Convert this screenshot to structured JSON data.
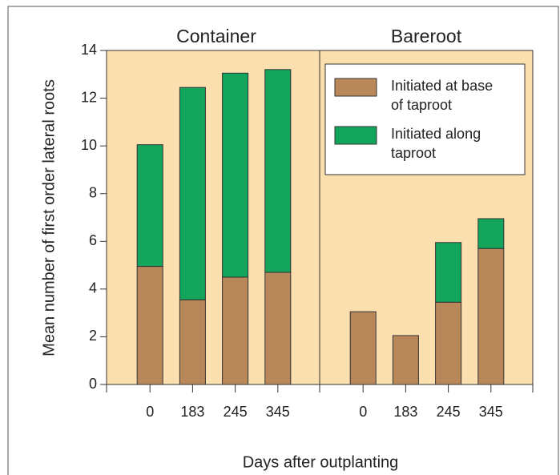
{
  "chart_data": {
    "type": "bar",
    "stacked": true,
    "ylabel": "Mean number of first order lateral roots",
    "xlabel": "Days after outplanting",
    "ylim": [
      0,
      14
    ],
    "yticks": [
      0,
      2,
      4,
      6,
      8,
      10,
      12,
      14
    ],
    "series": [
      {
        "name": "Initiated at base of taproot",
        "color": "#b8875a"
      },
      {
        "name": "Initiated along taproot",
        "color": "#12a55b"
      }
    ],
    "panels": [
      {
        "title": "Container",
        "categories": [
          "0",
          "183",
          "245",
          "345"
        ],
        "series": [
          {
            "values": [
              4.95,
              3.55,
              4.5,
              4.7
            ]
          },
          {
            "values": [
              5.1,
              8.9,
              8.55,
              8.5
            ]
          }
        ]
      },
      {
        "title": "Bareroot",
        "categories": [
          "0",
          "183",
          "245",
          "345"
        ],
        "series": [
          {
            "values": [
              3.05,
              2.05,
              3.45,
              5.7
            ]
          },
          {
            "values": [
              0,
              0,
              2.5,
              1.25
            ]
          }
        ]
      }
    ]
  }
}
